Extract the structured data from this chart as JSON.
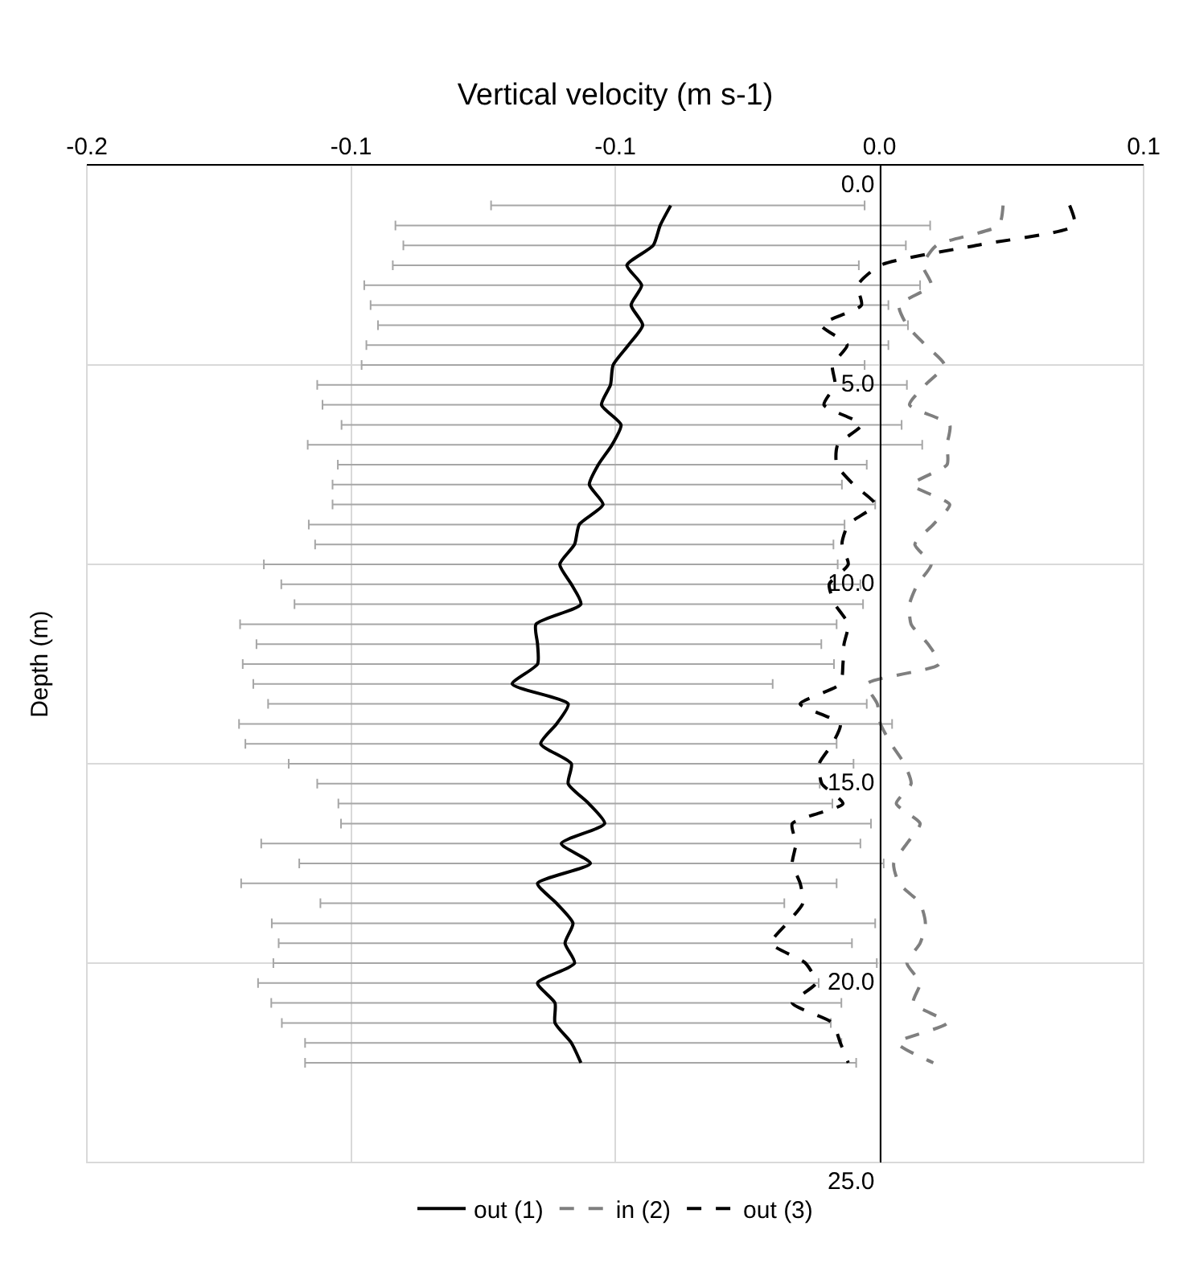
{
  "chart_data": {
    "type": "line",
    "xlabel": "Vertical velocity (m s-1)",
    "ylabel": "Depth (m)",
    "xlim": [
      -0.15,
      0.05
    ],
    "xticks": [
      {
        "value": -0.15,
        "label": "-0.2"
      },
      {
        "value": -0.1,
        "label": "-0.1"
      },
      {
        "value": -0.05,
        "label": "-0.1"
      },
      {
        "value": 0,
        "label": "0.0"
      },
      {
        "value": 0.05,
        "label": "0.1"
      }
    ],
    "ylim": [
      25,
      0
    ],
    "yticks": [
      {
        "value": 0,
        "label": "0.0"
      },
      {
        "value": 5,
        "label": "5.0"
      },
      {
        "value": 10,
        "label": "10.0"
      },
      {
        "value": 15,
        "label": "15.0"
      },
      {
        "value": 20,
        "label": "20.0"
      },
      {
        "value": 25,
        "label": "25.0"
      }
    ],
    "grid": true,
    "legend": "bottom",
    "marker": "none",
    "series": [
      {
        "name": "out (1)",
        "color": "#000000",
        "line_style": "solid",
        "x": [
          -0.0395,
          -0.0415,
          -0.0428,
          -0.0478,
          -0.045,
          -0.047,
          -0.0448,
          -0.0475,
          -0.0504,
          -0.0509,
          -0.0526,
          -0.0489,
          -0.0506,
          -0.0532,
          -0.0549,
          -0.0523,
          -0.0568,
          -0.0577,
          -0.0605,
          -0.0583,
          -0.0565,
          -0.065,
          -0.0647,
          -0.0647,
          -0.0695,
          -0.0589,
          -0.0611,
          -0.0641,
          -0.0583,
          -0.0589,
          -0.055,
          -0.052,
          -0.0602,
          -0.0547,
          -0.0647,
          -0.0611,
          -0.058,
          -0.0595,
          -0.0577,
          -0.0647,
          -0.0614,
          -0.0614,
          -0.0583,
          -0.0565
        ],
        "values": [
          1.0,
          1.5,
          2.0,
          2.5,
          3.0,
          3.5,
          4.0,
          4.5,
          5.0,
          5.5,
          6.0,
          6.5,
          7.0,
          7.5,
          8.0,
          8.5,
          9.0,
          9.5,
          10.0,
          10.5,
          11.0,
          11.5,
          12.0,
          12.5,
          13.0,
          13.5,
          14.0,
          14.5,
          15.0,
          15.5,
          16.0,
          16.5,
          17.0,
          17.5,
          18.0,
          18.5,
          19.0,
          19.5,
          20.0,
          20.5,
          21.0,
          21.5,
          22.0,
          22.5
        ],
        "xerrors": [
          [
            -0.0735,
            -0.0028
          ],
          [
            -0.0916,
            0.0096
          ],
          [
            -0.0901,
            0.005
          ],
          [
            -0.0921,
            -0.0039
          ],
          [
            -0.0975,
            0.0077
          ],
          [
            -0.0963,
            0.0017
          ],
          [
            -0.0949,
            0.0054
          ],
          [
            -0.0971,
            0.0017
          ],
          [
            -0.098,
            -0.0028
          ],
          [
            -0.1064,
            0.0052
          ],
          [
            -0.1054,
            0.0002
          ],
          [
            -0.1018,
            0.0042
          ],
          [
            -0.1082,
            0.0081
          ],
          [
            -0.1025,
            -0.0024
          ],
          [
            -0.1035,
            -0.0071
          ],
          [
            -0.1035,
            -0.0008
          ],
          [
            -0.108,
            -0.0066
          ],
          [
            -0.1068,
            -0.0087
          ],
          [
            -0.1165,
            -0.0079
          ],
          [
            -0.1132,
            -0.0036
          ],
          [
            -0.1107,
            -0.0031
          ],
          [
            -0.121,
            -0.0081
          ],
          [
            -0.1179,
            -0.011
          ],
          [
            -0.1205,
            -0.0086
          ],
          [
            -0.1185,
            -0.0202
          ],
          [
            -0.1157,
            -0.0024
          ],
          [
            -0.1212,
            0.0024
          ],
          [
            -0.12,
            -0.0081
          ],
          [
            -0.1118,
            -0.0049
          ],
          [
            -0.1064,
            -0.0113
          ],
          [
            -0.1024,
            -0.0089
          ],
          [
            -0.1019,
            -0.0016
          ],
          [
            -0.117,
            -0.0036
          ],
          [
            -0.1098,
            0.0008
          ],
          [
            -0.1208,
            -0.0081
          ],
          [
            -0.1058,
            -0.018
          ],
          [
            -0.115,
            -0.0008
          ],
          [
            -0.1137,
            -0.0052
          ],
          [
            -0.1147,
            -0.0005
          ],
          [
            -0.1176,
            -0.0115
          ],
          [
            -0.1151,
            -0.0072
          ],
          [
            -0.1131,
            -0.0092
          ],
          [
            -0.1087,
            -0.0072
          ],
          [
            -0.1087,
            -0.0044
          ]
        ]
      },
      {
        "name": "in (2)",
        "color": "#7f7f7f",
        "line_style": "dashed",
        "x": [
          0.0234,
          0.0226,
          0.0108,
          0.0082,
          0.0098,
          0.0037,
          0.0052,
          0.0087,
          0.0123,
          0.0087,
          0.0057,
          0.0133,
          0.0128,
          0.0128,
          0.0062,
          0.0133,
          0.0102,
          0.0067,
          0.0098,
          0.0072,
          0.0057,
          0.006,
          0.0092,
          0.0113,
          -0.0024,
          -0.0004,
          0.0002,
          0.0022,
          0.0047,
          0.006,
          0.0032,
          0.0077,
          0.0052,
          0.0027,
          0.0037,
          0.0077,
          0.0087,
          0.0077,
          0.0052,
          0.0077,
          0.0064,
          0.0128,
          0.0034,
          0.0102
        ],
        "values": [
          1.0,
          1.5,
          2.0,
          2.5,
          3.0,
          3.5,
          4.0,
          4.5,
          5.0,
          5.5,
          6.0,
          6.5,
          7.0,
          7.5,
          8.0,
          8.5,
          9.0,
          9.5,
          10.0,
          10.5,
          11.0,
          11.5,
          12.0,
          12.5,
          13.0,
          13.5,
          14.0,
          14.5,
          15.0,
          15.5,
          16.0,
          16.5,
          17.0,
          17.5,
          18.0,
          18.5,
          19.0,
          19.5,
          20.0,
          20.5,
          21.0,
          21.5,
          22.0,
          22.5
        ]
      },
      {
        "name": "out (3)",
        "color": "#000000",
        "line_style": "dashed",
        "x": [
          0.036,
          0.0369,
          0.0183,
          0.0002,
          -0.0041,
          -0.0034,
          -0.011,
          -0.0061,
          -0.0089,
          -0.0084,
          -0.0105,
          -0.0034,
          -0.0079,
          -0.0081,
          -0.0049,
          -0.0008,
          -0.0059,
          -0.0071,
          -0.0059,
          -0.0095,
          -0.0084,
          -0.0059,
          -0.0067,
          -0.0069,
          -0.0074,
          -0.015,
          -0.0074,
          -0.0089,
          -0.0114,
          -0.0109,
          -0.0069,
          -0.0165,
          -0.0158,
          -0.0165,
          -0.015,
          -0.0145,
          -0.0175,
          -0.0205,
          -0.014,
          -0.012,
          -0.0165,
          -0.0089,
          -0.0074,
          -0.0059
        ],
        "values": [
          1.0,
          1.5,
          2.0,
          2.5,
          3.0,
          3.5,
          4.0,
          4.5,
          5.0,
          5.5,
          6.0,
          6.5,
          7.0,
          7.5,
          8.0,
          8.5,
          9.0,
          9.5,
          10.0,
          10.5,
          11.0,
          11.5,
          12.0,
          12.5,
          13.0,
          13.5,
          14.0,
          14.5,
          15.0,
          15.5,
          16.0,
          16.5,
          17.0,
          17.5,
          18.0,
          18.5,
          19.0,
          19.5,
          20.0,
          20.5,
          21.0,
          21.5,
          22.0,
          22.5
        ]
      }
    ]
  }
}
